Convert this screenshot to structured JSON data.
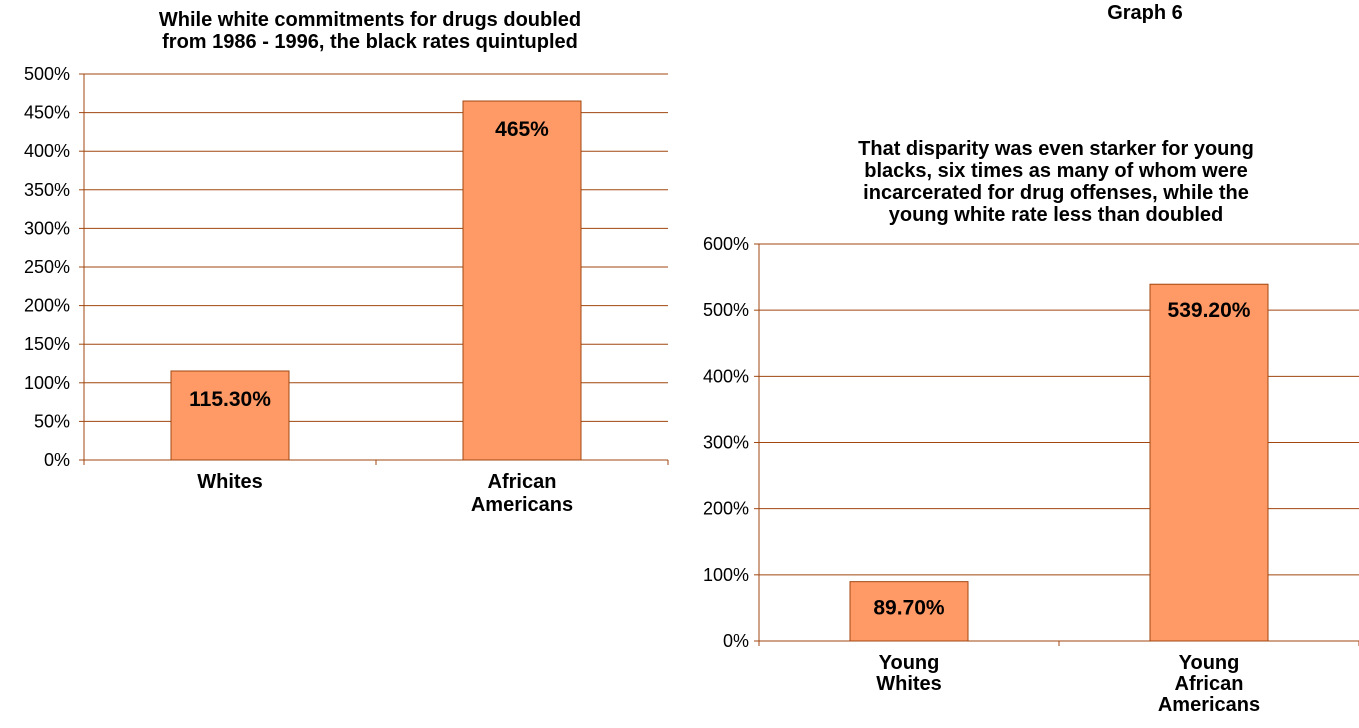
{
  "page_label": "Graph 6",
  "colors": {
    "bar_fill": "#ff9966",
    "bar_stroke": "#a0460f",
    "grid": "#a0460f",
    "text": "#000000"
  },
  "chart_data": [
    {
      "type": "bar",
      "title": "While white commitments for drugs doubled from 1986 - 1996, the black rates quintupled",
      "title_lines": [
        "While white commitments for drugs doubled",
        "from 1986 - 1996, the black rates quintupled"
      ],
      "categories": [
        "Whites",
        "African Americans"
      ],
      "category_lines": [
        [
          "Whites"
        ],
        [
          "African",
          "Americans"
        ]
      ],
      "values": [
        115.3,
        465
      ],
      "data_labels": [
        "115.30%",
        "465%"
      ],
      "ylim": [
        0,
        500
      ],
      "yticks": [
        0,
        50,
        100,
        150,
        200,
        250,
        300,
        350,
        400,
        450,
        500
      ],
      "ytick_labels": [
        "0%",
        "50%",
        "100%",
        "150%",
        "200%",
        "250%",
        "300%",
        "350%",
        "400%",
        "450%",
        "500%"
      ],
      "xlabel": "",
      "ylabel": "",
      "grid": true,
      "legend": false
    },
    {
      "type": "bar",
      "title": "That disparity was even starker for young blacks, six times as many of whom were incarcerated for drug offenses, while the young white rate less than doubled",
      "title_lines": [
        "That disparity was even starker for young",
        "blacks, six times as many of whom were",
        "incarcerated for drug offenses, while the",
        "young white rate less than doubled"
      ],
      "categories": [
        "Young Whites",
        "Young African Americans"
      ],
      "category_lines": [
        [
          "Young",
          "Whites"
        ],
        [
          "Young",
          "African",
          "Americans"
        ]
      ],
      "values": [
        89.7,
        539.2
      ],
      "data_labels": [
        "89.70%",
        "539.20%"
      ],
      "ylim": [
        0,
        600
      ],
      "yticks": [
        0,
        100,
        200,
        300,
        400,
        500,
        600
      ],
      "ytick_labels": [
        "0%",
        "100%",
        "200%",
        "300%",
        "400%",
        "500%",
        "600%"
      ],
      "xlabel": "",
      "ylabel": "",
      "grid": true,
      "legend": false
    }
  ]
}
